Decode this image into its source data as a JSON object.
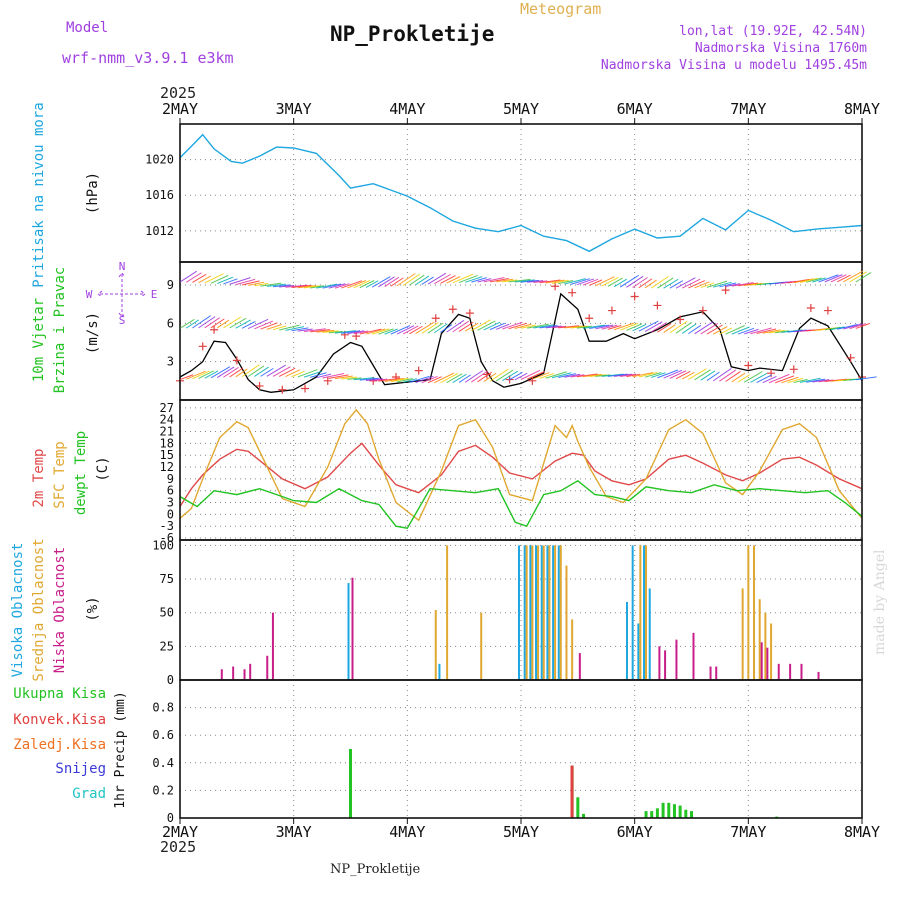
{
  "header": {
    "model_label": "Model",
    "model_name": "wrf-nmm_v3.9.1  e3km",
    "title": "NP_Prokletije",
    "subtitle": "Meteogram",
    "lonlat": "lon,lat (19.92E, 42.54N)",
    "elevation": "Nadmorska Visina 1760m",
    "model_elevation": "Nadmorska Visina u modelu 1495.45m",
    "year_top": "2025",
    "year_bottom": "2025",
    "footer_title": "NP_Prokletije",
    "watermark": "made by Angel"
  },
  "colors": {
    "pressure": "#1ea7e0",
    "wind_speed": "#000000",
    "wind_gust_marker": "#e04040",
    "temp_2m": "#e04848",
    "temp_sfc": "#e0a830",
    "dewpoint": "#22c322",
    "cloud_high": "#1ea7e0",
    "cloud_mid": "#e0a830",
    "cloud_low": "#c81e8a",
    "precip_total": "#22c322",
    "precip_conv": "#e04040",
    "precip_frozen": "#f07020",
    "precip_snow": "#3a3ad8",
    "precip_hail": "#22c4c4",
    "grid": "#888888",
    "violet_label": "#a040e0"
  },
  "chart_data": {
    "type": "meteogram",
    "x_categories": [
      "2MAY",
      "3MAY",
      "4MAY",
      "5MAY",
      "6MAY",
      "7MAY",
      "8MAY"
    ],
    "panels": [
      {
        "id": "pressure",
        "type": "line",
        "ylabel_lines": [
          "Pritisak na nivou mora",
          "(hPa)"
        ],
        "ylim": [
          1008.5,
          1024
        ],
        "yticks": [
          1012,
          1016,
          1020
        ],
        "series": [
          {
            "name": "Pritisak na nivou mora",
            "color_key": "pressure",
            "x": [
              0,
              0.1,
              0.2,
              0.3,
              0.45,
              0.55,
              0.7,
              0.85,
              1.0,
              1.2,
              1.4,
              1.5,
              1.7,
              1.85,
              2.0,
              2.2,
              2.4,
              2.6,
              2.8,
              3.0,
              3.2,
              3.4,
              3.6,
              3.8,
              4.0,
              4.2,
              4.4,
              4.6,
              4.8,
              5.0,
              5.2,
              5.4,
              5.6,
              5.8,
              6.0
            ],
            "y": [
              1020.2,
              1021.5,
              1022.8,
              1021.2,
              1019.8,
              1019.6,
              1020.4,
              1021.4,
              1021.3,
              1020.7,
              1018.2,
              1016.8,
              1017.3,
              1016.6,
              1015.9,
              1014.6,
              1013.1,
              1012.3,
              1011.9,
              1012.6,
              1011.4,
              1010.9,
              1009.7,
              1011.1,
              1012.2,
              1011.2,
              1011.4,
              1013.4,
              1012.1,
              1014.3,
              1013.2,
              1011.9,
              1012.2,
              1012.4,
              1012.6
            ]
          }
        ]
      },
      {
        "id": "wind",
        "type": "line_with_barbs",
        "ylabel_lines": [
          "10m Vjetar",
          "Brzina i Pravac",
          "(m/s)"
        ],
        "compass_labels": {
          "N": "N",
          "S": "S",
          "W": "W",
          "E": "E"
        },
        "ylim": [
          0,
          10.8
        ],
        "yticks": [
          3,
          6,
          9
        ],
        "series": [
          {
            "name": "Brzina vjetra",
            "color_key": "wind_speed",
            "x": [
              0,
              0.1,
              0.2,
              0.3,
              0.4,
              0.5,
              0.6,
              0.7,
              0.8,
              1.0,
              1.2,
              1.35,
              1.5,
              1.6,
              1.8,
              2.0,
              2.2,
              2.3,
              2.45,
              2.55,
              2.65,
              2.75,
              2.85,
              3.0,
              3.2,
              3.35,
              3.5,
              3.6,
              3.75,
              3.9,
              4.0,
              4.2,
              4.4,
              4.6,
              4.75,
              4.85,
              5.0,
              5.1,
              5.3,
              5.45,
              5.55,
              5.7,
              5.9,
              6.0
            ],
            "y": [
              1.8,
              2.3,
              3.0,
              4.6,
              4.5,
              3.2,
              1.6,
              0.8,
              0.6,
              0.8,
              1.8,
              3.6,
              4.5,
              4.2,
              1.2,
              1.4,
              1.6,
              5.2,
              6.7,
              6.4,
              3.0,
              1.5,
              1.0,
              1.3,
              2.1,
              8.3,
              7.1,
              4.6,
              4.6,
              5.2,
              4.8,
              5.5,
              6.5,
              6.9,
              5.5,
              2.6,
              2.3,
              2.5,
              2.3,
              5.6,
              6.4,
              5.8,
              3.0,
              1.5
            ]
          },
          {
            "name": "Udari",
            "color_key": "wind_gust_marker",
            "x": [
              0,
              0.2,
              0.3,
              0.5,
              0.7,
              0.9,
              1.1,
              1.3,
              1.45,
              1.55,
              1.7,
              1.9,
              2.1,
              2.25,
              2.4,
              2.55,
              2.7,
              2.9,
              3.1,
              3.3,
              3.45,
              3.6,
              3.8,
              4.0,
              4.2,
              4.4,
              4.6,
              4.8,
              5.0,
              5.2,
              5.4,
              5.55,
              5.7,
              5.9,
              6.0
            ],
            "y": [
              1.5,
              4.2,
              5.5,
              3.1,
              1.1,
              0.8,
              0.9,
              1.5,
              5.1,
              5.0,
              1.5,
              1.8,
              2.3,
              6.4,
              7.1,
              6.8,
              2.0,
              1.6,
              1.5,
              8.9,
              8.4,
              6.4,
              7.0,
              8.1,
              7.4,
              6.3,
              7.0,
              8.6,
              2.7,
              2.1,
              2.4,
              7.2,
              7.0,
              3.3,
              1.8
            ]
          }
        ]
      },
      {
        "id": "temperature",
        "type": "line",
        "ylabel_lines": [
          "2m Temp",
          "SFC Temp",
          "dewpt Temp",
          "(C)"
        ],
        "ylim": [
          -6.5,
          29
        ],
        "yticks": [
          -6,
          -3,
          0,
          3,
          6,
          9,
          12,
          15,
          18,
          21,
          24,
          27
        ],
        "series": [
          {
            "name": "2m Temp",
            "color_key": "temp_2m",
            "x": [
              0,
              0.1,
              0.2,
              0.35,
              0.5,
              0.6,
              0.75,
              0.9,
              1.1,
              1.3,
              1.5,
              1.6,
              1.75,
              1.9,
              2.1,
              2.3,
              2.45,
              2.6,
              2.75,
              2.9,
              3.1,
              3.3,
              3.45,
              3.55,
              3.65,
              3.8,
              3.95,
              4.1,
              4.3,
              4.45,
              4.6,
              4.8,
              4.95,
              5.1,
              5.3,
              5.45,
              5.6,
              5.8,
              6.0
            ],
            "y": [
              2.0,
              6.5,
              10.0,
              14.0,
              16.5,
              16.0,
              12.5,
              9.0,
              6.5,
              9.5,
              15.5,
              18.0,
              12.5,
              7.5,
              5.5,
              10.0,
              16.0,
              17.5,
              14.5,
              10.5,
              9.0,
              13.5,
              15.5,
              15.0,
              11.0,
              8.5,
              7.5,
              9.0,
              14.0,
              15.0,
              13.0,
              10.0,
              8.5,
              10.5,
              14.0,
              14.5,
              12.5,
              9.0,
              6.5
            ]
          },
          {
            "name": "SFC Temp",
            "color_key": "temp_sfc",
            "x": [
              0,
              0.1,
              0.2,
              0.35,
              0.5,
              0.6,
              0.75,
              0.9,
              1.1,
              1.3,
              1.45,
              1.55,
              1.65,
              1.75,
              1.9,
              2.1,
              2.3,
              2.45,
              2.6,
              2.75,
              2.9,
              3.1,
              3.3,
              3.4,
              3.45,
              3.5,
              3.6,
              3.75,
              3.9,
              4.1,
              4.3,
              4.45,
              4.6,
              4.8,
              4.95,
              5.1,
              5.3,
              5.45,
              5.6,
              5.8,
              6.0
            ],
            "y": [
              -1.0,
              1.5,
              9.0,
              19.5,
              23.5,
              22.0,
              13.0,
              4.0,
              2.0,
              12.0,
              23.0,
              26.5,
              23.0,
              14.0,
              3.0,
              -1.5,
              11.0,
              22.5,
              24.0,
              17.0,
              5.0,
              3.5,
              22.5,
              19.5,
              22.5,
              18.5,
              12.0,
              4.5,
              3.0,
              9.0,
              21.5,
              24.0,
              20.5,
              8.0,
              5.0,
              11.0,
              21.5,
              23.0,
              19.5,
              6.0,
              -1.0
            ]
          },
          {
            "name": "dewpt Temp",
            "color_key": "dewpoint",
            "x": [
              0,
              0.15,
              0.3,
              0.5,
              0.7,
              0.85,
              1.0,
              1.2,
              1.4,
              1.6,
              1.75,
              1.9,
              2.0,
              2.2,
              2.4,
              2.6,
              2.8,
              2.95,
              3.05,
              3.2,
              3.35,
              3.5,
              3.65,
              3.8,
              3.95,
              4.1,
              4.3,
              4.5,
              4.7,
              4.9,
              5.1,
              5.3,
              5.5,
              5.7,
              5.85,
              6.0
            ],
            "y": [
              4.5,
              2.0,
              6.0,
              5.0,
              6.5,
              5.0,
              3.5,
              3.0,
              6.5,
              3.5,
              2.5,
              -3.0,
              -3.5,
              6.5,
              6.0,
              5.5,
              6.5,
              -2.0,
              -3.0,
              5.0,
              6.0,
              8.5,
              5.0,
              4.5,
              3.5,
              7.0,
              6.0,
              5.5,
              7.5,
              6.0,
              6.5,
              6.0,
              5.5,
              6.0,
              3.0,
              -0.5
            ]
          }
        ]
      },
      {
        "id": "clouds",
        "type": "bar",
        "ylabel_lines": [
          "Visoka Oblacnost",
          "Srednja Oblacnost",
          "Niska Oblacnost",
          "(%)"
        ],
        "ylim": [
          0,
          104
        ],
        "yticks": [
          0,
          25,
          50,
          75,
          100
        ],
        "series": [
          {
            "name": "Visoka Oblacnost",
            "color_key": "cloud_high",
            "x": [
              1.5,
              2.3,
              3.0,
              3.05,
              3.1,
              3.15,
              3.2,
              3.25,
              3.3,
              3.35,
              3.95,
              4.0,
              4.05,
              4.1,
              4.15
            ],
            "values": [
              72,
              12,
              100,
              100,
              100,
              100,
              100,
              100,
              100,
              100,
              58,
              100,
              42,
              100,
              68
            ]
          },
          {
            "name": "Srednja Oblacnost",
            "color_key": "cloud_mid",
            "x": [
              2.25,
              2.35,
              2.65,
              3.05,
              3.1,
              3.15,
              3.2,
              3.25,
              3.3,
              3.35,
              3.4,
              3.45,
              4.05,
              4.1,
              4.95,
              5.0,
              5.05,
              5.1,
              5.15,
              5.2
            ],
            "values": [
              52,
              100,
              50,
              100,
              100,
              100,
              100,
              100,
              100,
              100,
              85,
              45,
              100,
              100,
              68,
              100,
              100,
              60,
              50,
              42
            ]
          },
          {
            "name": "Niska Oblacnost",
            "color_key": "cloud_low",
            "x": [
              0.35,
              0.45,
              0.55,
              0.6,
              0.75,
              0.8,
              1.5,
              3.5,
              4.2,
              4.25,
              4.35,
              4.5,
              4.65,
              4.7,
              5.1,
              5.15,
              5.25,
              5.35,
              5.45,
              5.6
            ],
            "values": [
              8,
              10,
              8,
              12,
              18,
              50,
              76,
              20,
              25,
              22,
              30,
              35,
              10,
              10,
              28,
              24,
              12,
              12,
              12,
              6
            ]
          }
        ]
      },
      {
        "id": "precip",
        "type": "bar",
        "ylabel_lines": [
          "1hr Precip (mm)"
        ],
        "legend": [
          "Ukupna Kisa",
          "Konvek.Kisa",
          "Zaledj.Kisa",
          "Snijeg",
          "Grad"
        ],
        "ylim": [
          0,
          1.0
        ],
        "yticks": [
          0,
          0.2,
          0.4,
          0.6,
          0.8
        ],
        "series": [
          {
            "name": "Ukupna Kisa",
            "color_key": "precip_total",
            "x": [
              1.5,
              3.45,
              3.5,
              3.55,
              4.1,
              4.15,
              4.2,
              4.25,
              4.3,
              4.35,
              4.4,
              4.45,
              4.5,
              5.25
            ],
            "values": [
              0.5,
              0.38,
              0.15,
              0.03,
              0.05,
              0.05,
              0.07,
              0.11,
              0.11,
              0.1,
              0.09,
              0.06,
              0.05,
              0.01
            ]
          },
          {
            "name": "Konvek.Kisa",
            "color_key": "precip_conv",
            "x": [
              3.44
            ],
            "values": [
              0.38
            ]
          }
        ]
      }
    ]
  }
}
